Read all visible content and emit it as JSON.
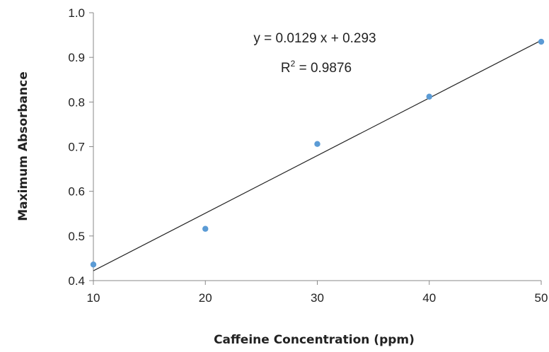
{
  "chart_data": {
    "type": "scatter",
    "title": "",
    "xlabel": "Caffeine Concentration (ppm)",
    "ylabel": "Maximum Absorbance",
    "xlim": [
      10,
      50
    ],
    "ylim": [
      0.4,
      1.0
    ],
    "x_ticks": [
      "10",
      "20",
      "30",
      "40",
      "50"
    ],
    "y_ticks": [
      "0.4",
      "0.5",
      "0.6",
      "0.7",
      "0.8",
      "0.9",
      "1.0"
    ],
    "grid": false,
    "legend": "none",
    "series": [
      {
        "x": [
          10,
          20,
          30,
          40,
          50
        ],
        "y": [
          0.436,
          0.516,
          0.706,
          0.812,
          0.935
        ],
        "color": "#5b9bd5"
      }
    ],
    "trendline": {
      "type": "linear",
      "slope": 0.0129,
      "intercept": 0.293,
      "color": "#222222"
    },
    "annotations": {
      "equation": "y = 0.0129 x + 0.293",
      "r2_prefix": "R",
      "r2_sup": "2",
      "r2_value": " = 0.9876"
    },
    "axis_color": "#888888"
  }
}
